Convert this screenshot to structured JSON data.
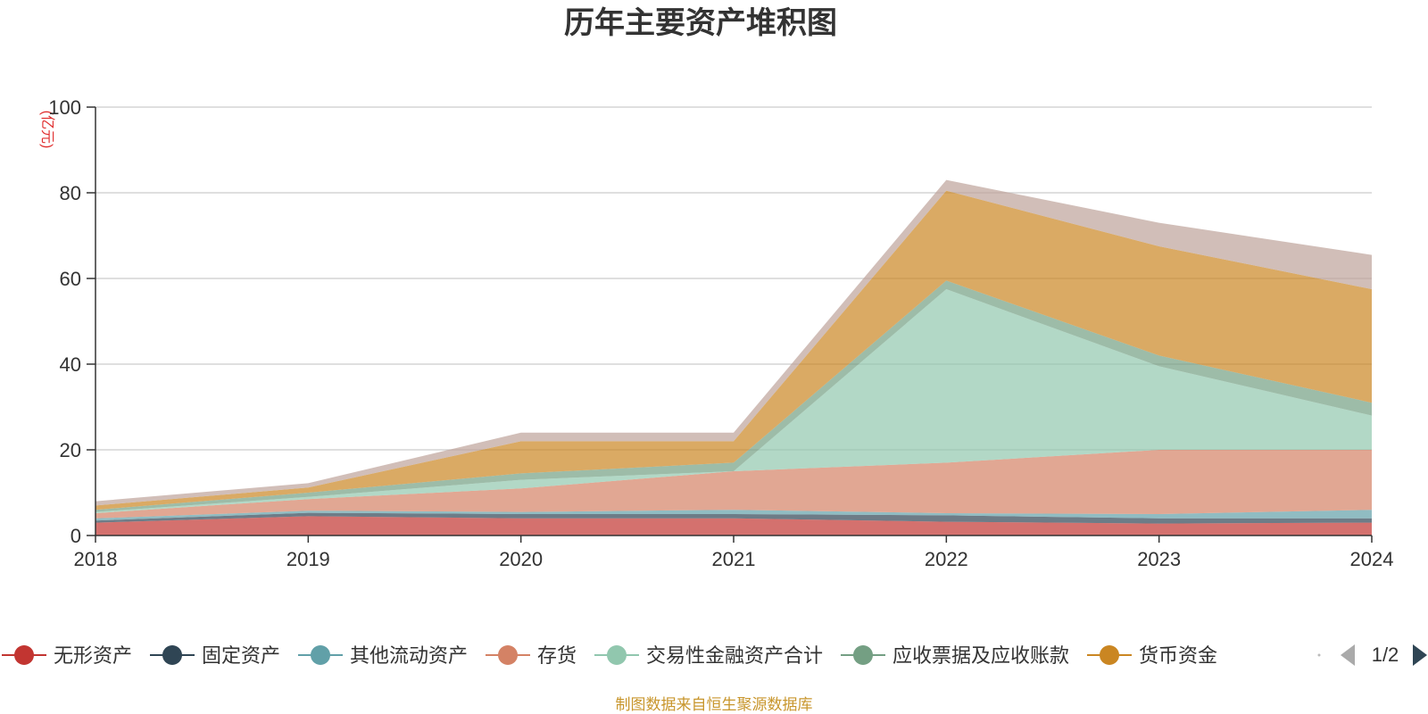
{
  "chart_data": {
    "type": "area",
    "stacked": true,
    "title": "历年主要资产堆积图",
    "unit_label": "(亿元)",
    "x": [
      "2018",
      "2019",
      "2020",
      "2021",
      "2022",
      "2023",
      "2024"
    ],
    "ylim": [
      0,
      100
    ],
    "yticks": [
      0,
      20,
      40,
      60,
      80,
      100
    ],
    "grid": true,
    "legend_position": "bottom",
    "series": [
      {
        "name": "无形资产",
        "color": "#c23531",
        "values": [
          3.0,
          4.5,
          4.0,
          4.0,
          3.2,
          2.8,
          3.0
        ]
      },
      {
        "name": "固定资产",
        "color": "#2f4554",
        "values": [
          0.5,
          0.8,
          1.0,
          1.0,
          1.5,
          1.2,
          1.0
        ]
      },
      {
        "name": "其他流动资产",
        "color": "#61a0a8",
        "values": [
          0.5,
          0.5,
          0.5,
          1.0,
          0.5,
          1.0,
          2.0
        ]
      },
      {
        "name": "存货",
        "color": "#d48265",
        "values": [
          1.2,
          2.7,
          5.5,
          9.0,
          11.8,
          15.0,
          14.0
        ]
      },
      {
        "name": "交易性金融资产合计",
        "color": "#91c7ae",
        "values": [
          0.3,
          0.5,
          2.0,
          0.0,
          40.5,
          19.5,
          8.0
        ]
      },
      {
        "name": "应收票据及应收账款",
        "color": "#749f83",
        "values": [
          0.5,
          1.0,
          1.5,
          2.0,
          2.0,
          2.5,
          3.0
        ]
      },
      {
        "name": "货币资金",
        "color": "#ca8622",
        "values": [
          1.0,
          1.2,
          7.5,
          5.0,
          21.0,
          25.5,
          26.5
        ]
      },
      {
        "name": "",
        "color": "#bda29a",
        "values": [
          1.0,
          1.0,
          2.0,
          2.0,
          2.5,
          5.5,
          8.0
        ]
      }
    ]
  },
  "legend": {
    "items": [
      {
        "label": "无形资产",
        "color": "#c23531"
      },
      {
        "label": "固定资产",
        "color": "#2f4554"
      },
      {
        "label": "其他流动资产",
        "color": "#61a0a8"
      },
      {
        "label": "存货",
        "color": "#d48265"
      },
      {
        "label": "交易性金融资产合计",
        "color": "#91c7ae"
      },
      {
        "label": "应收票据及应收账款",
        "color": "#749f83"
      },
      {
        "label": "货币资金",
        "color": "#ca8622"
      }
    ],
    "page_text": "1/2"
  },
  "source_note": "制图数据来自恒生聚源数据库"
}
